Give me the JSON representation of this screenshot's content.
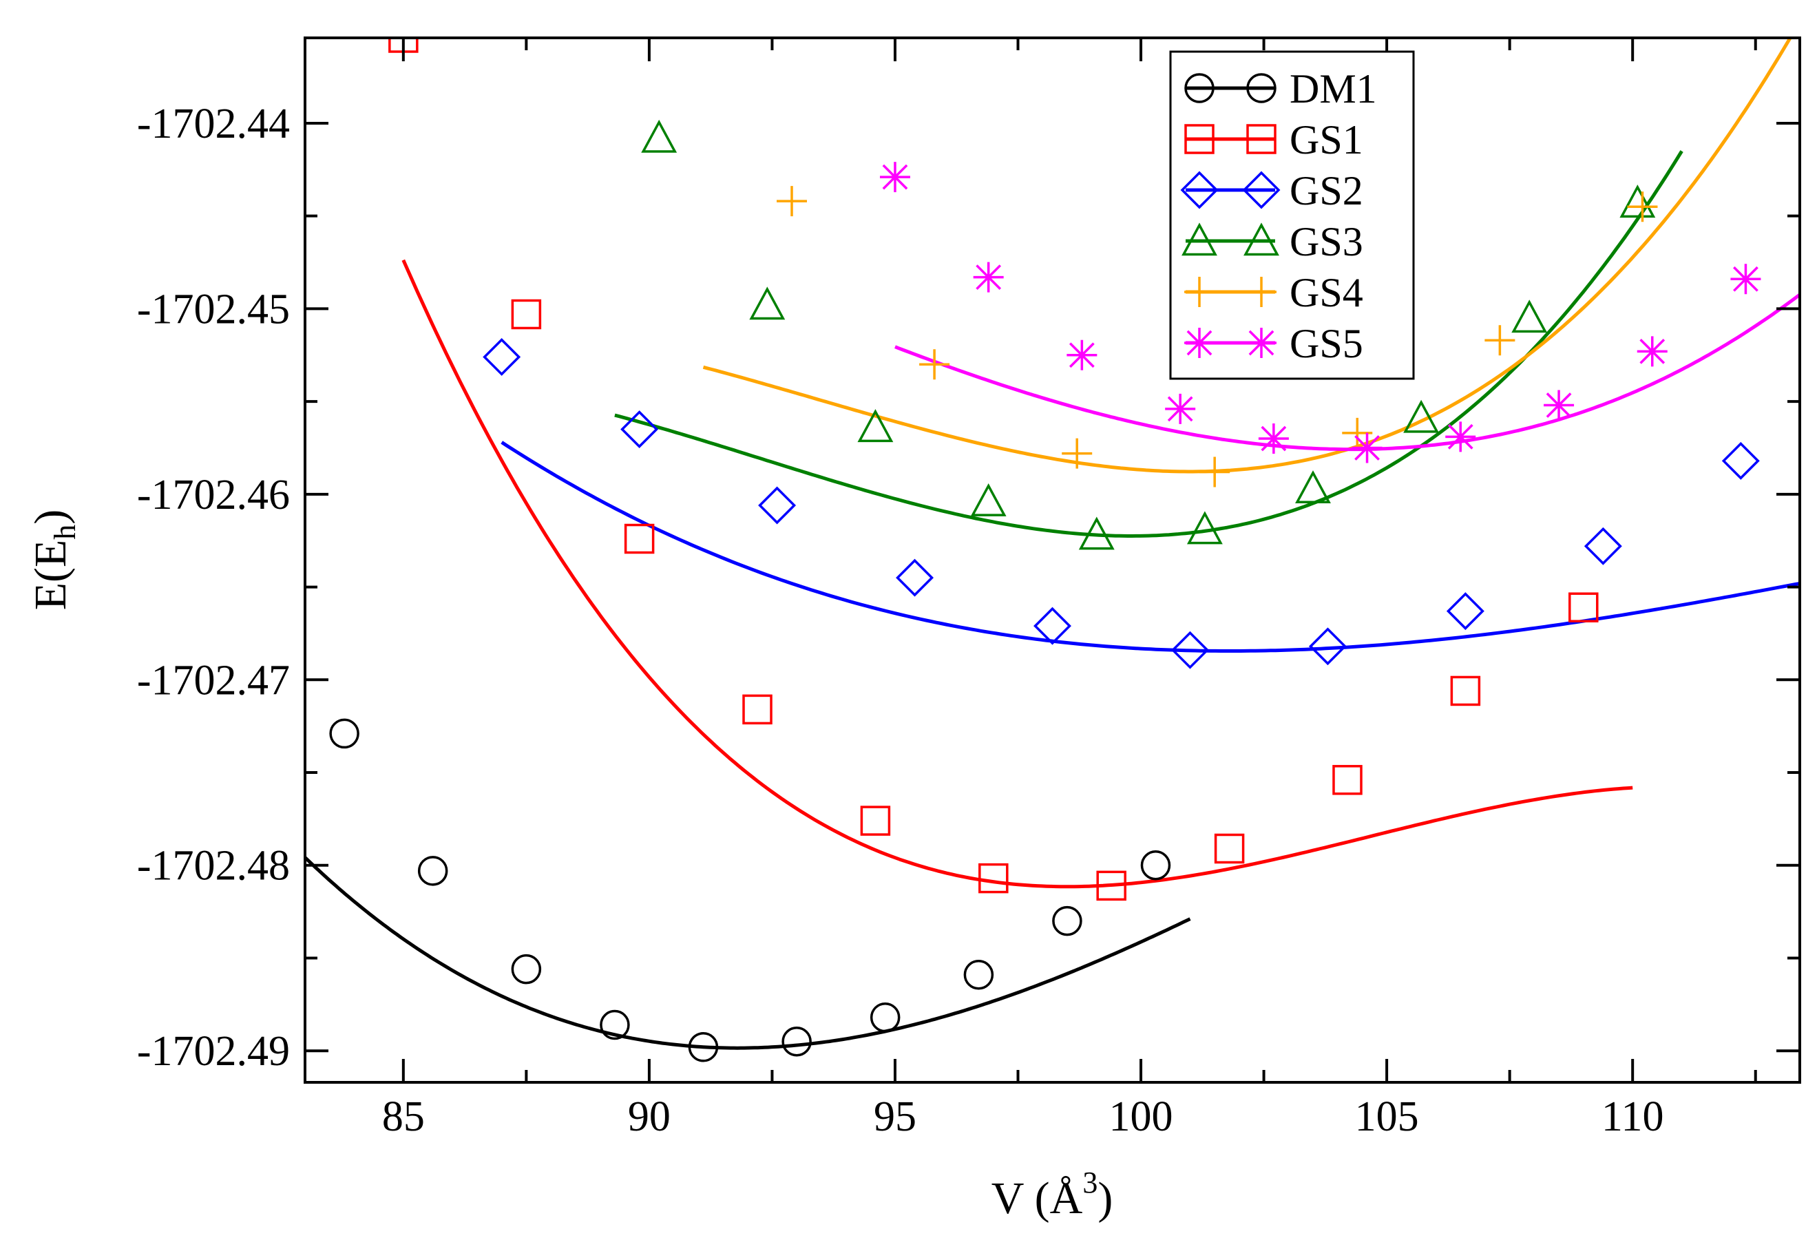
{
  "chart_data": {
    "type": "line",
    "title": "",
    "xlabel": "V (Å",
    "xlabel_sup": "3",
    "xlabel_close": ")",
    "ylabel": "E(E",
    "ylabel_sub": "h",
    "ylabel_close": ")",
    "xlim": [
      83,
      113.4
    ],
    "ylim": [
      -1702.4917,
      -1702.4354
    ],
    "xticks": [
      85,
      90,
      95,
      100,
      105,
      110
    ],
    "xtick_labels": [
      "85",
      "90",
      "95",
      "100",
      "105",
      "110"
    ],
    "yticks": [
      -1702.49,
      -1702.48,
      -1702.47,
      -1702.46,
      -1702.45,
      -1702.44
    ],
    "ytick_labels": [
      "-1702.49",
      "-1702.48",
      "-1702.47",
      "-1702.46",
      "-1702.45",
      "-1702.44"
    ],
    "grid": false,
    "legend_position": "top-right",
    "series": [
      {
        "name": "DM1",
        "color": "#000000",
        "marker": "circle",
        "x": [
          83.8,
          85.6,
          87.5,
          89.3,
          91.1,
          93.0,
          94.8,
          96.7,
          98.5,
          100.3
        ],
        "y": [
          -1702.4729,
          -1702.4803,
          -1702.4856,
          -1702.4886,
          -1702.4898,
          -1702.4895,
          -1702.4882,
          -1702.4859,
          -1702.483,
          -1702.48
        ],
        "fit": {
          "vmin": 91.8,
          "emin": -1702.48985,
          "a": 0.000216,
          "b": -2.8e-06,
          "x_from": 83,
          "x_to": 101
        }
      },
      {
        "name": "GS1",
        "color": "#ff0000",
        "marker": "square",
        "x": [
          85.0,
          87.5,
          89.8,
          92.2,
          94.6,
          97.0,
          99.4,
          101.8,
          104.2,
          106.6,
          109.0
        ],
        "y": [
          -1702.4354,
          -1702.4503,
          -1702.4624,
          -1702.4716,
          -1702.4776,
          -1702.4807,
          -1702.4811,
          -1702.4791,
          -1702.4754,
          -1702.4706,
          -1702.4661
        ],
        "fit": {
          "vmin": 98.5,
          "emin": -1702.48115,
          "a": 0.000214,
          "b": -5.8e-06,
          "x_from": 85,
          "x_to": 110
        }
      },
      {
        "name": "GS2",
        "color": "#0000ff",
        "marker": "diamond",
        "x": [
          87.0,
          89.8,
          92.6,
          95.4,
          98.2,
          101.0,
          103.8,
          106.6,
          109.4,
          112.2
        ],
        "y": [
          -1702.4526,
          -1702.4565,
          -1702.4606,
          -1702.4645,
          -1702.4671,
          -1702.4684,
          -1702.4682,
          -1702.4663,
          -1702.4628,
          -1702.4582
        ],
        "fit": {
          "vmin": 101.8,
          "emin": -1702.46845,
          "a": 7.55e-05,
          "b": -9.2e-07,
          "x_from": 87,
          "x_to": 113.4
        }
      },
      {
        "name": "GS3",
        "color": "#008000",
        "marker": "triangle",
        "x": [
          90.2,
          92.4,
          94.6,
          96.9,
          99.1,
          101.3,
          103.5,
          105.7,
          107.9,
          110.1
        ],
        "y": [
          -1702.4408,
          -1702.4498,
          -1702.4564,
          -1702.4604,
          -1702.4622,
          -1702.4619,
          -1702.4597,
          -1702.4559,
          -1702.4505,
          -1702.4443
        ],
        "fit": {
          "vmin": 99.8,
          "emin": -1702.46225,
          "a": 0.000221,
          "b": 4.9e-06,
          "x_from": 89.3,
          "x_to": 111
        }
      },
      {
        "name": "GS4",
        "color": "#ffa500",
        "marker": "plus",
        "x": [
          92.9,
          95.8,
          98.7,
          101.5,
          104.4,
          107.3,
          110.2
        ],
        "y": [
          -1702.4442,
          -1702.453,
          -1702.4578,
          -1702.4588,
          -1702.4567,
          -1702.4517,
          -1702.4445
        ],
        "fit": {
          "vmin": 101.0,
          "emin": -1702.45878,
          "a": 0.000204,
          "b": 4.5e-06,
          "x_from": 91.1,
          "x_to": 113.4
        }
      },
      {
        "name": "GS5",
        "color": "#ff00ff",
        "marker": "asterisk",
        "x": [
          95.0,
          96.9,
          98.8,
          100.8,
          102.7,
          104.6,
          106.5,
          108.5,
          110.4,
          112.3
        ],
        "y": [
          -1702.4429,
          -1702.4483,
          -1702.4525,
          -1702.4554,
          -1702.457,
          -1702.4575,
          -1702.4569,
          -1702.4552,
          -1702.4523,
          -1702.4484
        ],
        "fit": {
          "vmin": 104.3,
          "emin": -1702.45758,
          "a": 0.000165,
          "b": 2e-06,
          "x_from": 95,
          "x_to": 113.4
        }
      }
    ]
  }
}
